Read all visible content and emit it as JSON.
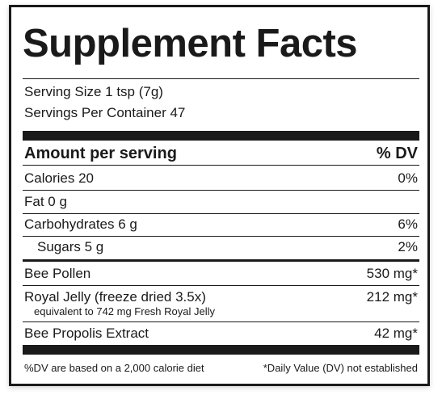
{
  "title": "Supplement Facts",
  "serving_size": "Serving Size 1 tsp (7g)",
  "servings_per_container": "Servings Per Container 47",
  "header": {
    "amount": "Amount per serving",
    "dv": "% DV"
  },
  "nutrients": [
    {
      "label": "Calories 20",
      "dv": "0%"
    },
    {
      "label": "Fat 0 g",
      "dv": ""
    },
    {
      "label": "Carbohydrates 6 g",
      "dv": "6%"
    },
    {
      "label": "Sugars 5 g",
      "dv": "2%"
    }
  ],
  "ingredients": [
    {
      "label": "Bee Pollen",
      "amount": "530 mg*"
    },
    {
      "label": "Royal Jelly (freeze dried 3.5x)",
      "amount": "212 mg*",
      "note": "equivalent to 742 mg Fresh Royal Jelly"
    },
    {
      "label": "Bee Propolis Extract",
      "amount": "42 mg*"
    }
  ],
  "footer": {
    "left": "%DV are based on a 2,000 calorie diet",
    "right": "*Daily Value (DV) not established"
  }
}
